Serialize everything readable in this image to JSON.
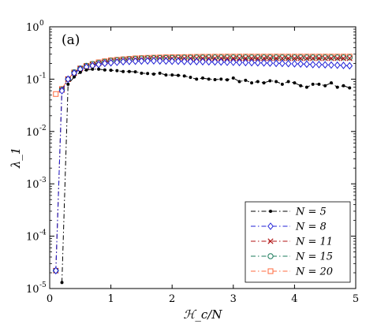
{
  "chart_data": {
    "type": "line",
    "panel_label": "(a)",
    "xlabel": "ℋ_c/N",
    "ylabel": "λ_1",
    "xlim": [
      0,
      5
    ],
    "ylim": [
      1e-05,
      1
    ],
    "yscale": "log",
    "x_ticks": [
      "0",
      "1",
      "2",
      "3",
      "4",
      "5"
    ],
    "y_ticks": [
      {
        "base": "10",
        "exp": "-5"
      },
      {
        "base": "10",
        "exp": "-4"
      },
      {
        "base": "10",
        "exp": "-3"
      },
      {
        "base": "10",
        "exp": "-2"
      },
      {
        "base": "10",
        "exp": "-1"
      },
      {
        "base": "10",
        "exp": "0"
      }
    ],
    "grid": false,
    "legend_position": "lower-right",
    "series": [
      {
        "name": "N = 5",
        "color": "#000000",
        "marker": "dot",
        "x": [
          0.2,
          0.3,
          0.4,
          0.5,
          0.6,
          0.7,
          0.8,
          0.9,
          1.0,
          1.1,
          1.2,
          1.3,
          1.4,
          1.5,
          1.6,
          1.7,
          1.8,
          1.9,
          2.0,
          2.1,
          2.2,
          2.3,
          2.4,
          2.5,
          2.6,
          2.7,
          2.8,
          2.9,
          3.0,
          3.1,
          3.2,
          3.3,
          3.4,
          3.5,
          3.6,
          3.7,
          3.8,
          3.9,
          4.0,
          4.1,
          4.2,
          4.3,
          4.4,
          4.5,
          4.6,
          4.7,
          4.8,
          4.9
        ],
        "y": [
          1.3e-05,
          0.08,
          0.11,
          0.135,
          0.15,
          0.155,
          0.155,
          0.15,
          0.148,
          0.145,
          0.14,
          0.14,
          0.138,
          0.13,
          0.128,
          0.125,
          0.13,
          0.12,
          0.12,
          0.118,
          0.115,
          0.108,
          0.1,
          0.105,
          0.1,
          0.098,
          0.1,
          0.097,
          0.105,
          0.09,
          0.095,
          0.085,
          0.09,
          0.085,
          0.093,
          0.09,
          0.08,
          0.09,
          0.085,
          0.075,
          0.07,
          0.08,
          0.08,
          0.075,
          0.085,
          0.07,
          0.075,
          0.068
        ]
      },
      {
        "name": "N = 8",
        "color": "#1f1fd6",
        "marker": "diamond",
        "x": [
          0.1,
          0.2,
          0.3,
          0.4,
          0.5,
          0.6,
          0.7,
          0.8,
          0.9,
          1.0,
          1.1,
          1.2,
          1.3,
          1.4,
          1.5,
          1.6,
          1.7,
          1.8,
          1.9,
          2.0,
          2.1,
          2.2,
          2.3,
          2.4,
          2.5,
          2.6,
          2.7,
          2.8,
          2.9,
          3.0,
          3.1,
          3.2,
          3.3,
          3.4,
          3.5,
          3.6,
          3.7,
          3.8,
          3.9,
          4.0,
          4.1,
          4.2,
          4.3,
          4.4,
          4.5,
          4.6,
          4.7,
          4.8,
          4.9
        ],
        "y": [
          2.2e-05,
          0.06,
          0.1,
          0.13,
          0.155,
          0.17,
          0.18,
          0.19,
          0.2,
          0.205,
          0.21,
          0.215,
          0.218,
          0.22,
          0.222,
          0.223,
          0.224,
          0.223,
          0.222,
          0.22,
          0.22,
          0.218,
          0.217,
          0.216,
          0.215,
          0.214,
          0.213,
          0.212,
          0.21,
          0.21,
          0.208,
          0.207,
          0.206,
          0.205,
          0.204,
          0.202,
          0.2,
          0.2,
          0.198,
          0.196,
          0.195,
          0.193,
          0.19,
          0.19,
          0.188,
          0.186,
          0.185,
          0.183,
          0.18
        ]
      },
      {
        "name": "N = 11",
        "color": "#b01212",
        "marker": "x",
        "x": [
          0.1,
          0.2,
          0.3,
          0.4,
          0.5,
          0.6,
          0.7,
          0.8,
          0.9,
          1.0,
          1.1,
          1.2,
          1.3,
          1.4,
          1.5,
          1.6,
          1.7,
          1.8,
          1.9,
          2.0,
          2.1,
          2.2,
          2.3,
          2.4,
          2.5,
          2.6,
          2.7,
          2.8,
          2.9,
          3.0,
          3.1,
          3.2,
          3.3,
          3.4,
          3.5,
          3.6,
          3.7,
          3.8,
          3.9,
          4.0,
          4.1,
          4.2,
          4.3,
          4.4,
          4.5,
          4.6,
          4.7,
          4.8,
          4.9
        ],
        "y": [
          2.2e-05,
          0.062,
          0.1,
          0.13,
          0.16,
          0.175,
          0.19,
          0.2,
          0.21,
          0.22,
          0.225,
          0.23,
          0.235,
          0.24,
          0.242,
          0.245,
          0.247,
          0.248,
          0.25,
          0.25,
          0.25,
          0.25,
          0.25,
          0.25,
          0.25,
          0.25,
          0.25,
          0.25,
          0.25,
          0.25,
          0.25,
          0.25,
          0.25,
          0.25,
          0.25,
          0.25,
          0.25,
          0.25,
          0.25,
          0.25,
          0.25,
          0.25,
          0.25,
          0.25,
          0.25,
          0.25,
          0.25,
          0.25,
          0.25
        ]
      },
      {
        "name": "N = 15",
        "color": "#1a7a5a",
        "marker": "circle",
        "x": [
          0.1,
          0.2,
          0.3,
          0.4,
          0.5,
          0.6,
          0.7,
          0.8,
          0.9,
          1.0,
          1.1,
          1.2,
          1.3,
          1.4,
          1.5,
          1.6,
          1.7,
          1.8,
          1.9,
          2.0,
          2.1,
          2.2,
          2.3,
          2.4,
          2.5,
          2.6,
          2.7,
          2.8,
          2.9,
          3.0,
          3.1,
          3.2,
          3.3,
          3.4,
          3.5,
          3.6,
          3.7,
          3.8,
          3.9,
          4.0,
          4.1,
          4.2,
          4.3,
          4.4,
          4.5,
          4.6,
          4.7,
          4.8,
          4.9
        ],
        "y": [
          2.2e-05,
          0.063,
          0.1,
          0.135,
          0.16,
          0.18,
          0.195,
          0.205,
          0.215,
          0.225,
          0.23,
          0.236,
          0.24,
          0.245,
          0.248,
          0.25,
          0.252,
          0.254,
          0.255,
          0.256,
          0.257,
          0.258,
          0.258,
          0.259,
          0.259,
          0.26,
          0.26,
          0.26,
          0.26,
          0.26,
          0.26,
          0.26,
          0.26,
          0.26,
          0.26,
          0.26,
          0.26,
          0.26,
          0.26,
          0.26,
          0.26,
          0.26,
          0.26,
          0.26,
          0.26,
          0.26,
          0.26,
          0.26,
          0.26
        ]
      },
      {
        "name": "N = 20",
        "color": "#ff6a3d",
        "marker": "square",
        "x": [
          0.1,
          0.2,
          0.3,
          0.4,
          0.5,
          0.6,
          0.7,
          0.8,
          0.9,
          1.0,
          1.1,
          1.2,
          1.3,
          1.4,
          1.5,
          1.6,
          1.7,
          1.8,
          1.9,
          2.0,
          2.1,
          2.2,
          2.3,
          2.4,
          2.5,
          2.6,
          2.7,
          2.8,
          2.9,
          3.0,
          3.1,
          3.2,
          3.3,
          3.4,
          3.5,
          3.6,
          3.7,
          3.8,
          3.9,
          4.0,
          4.1,
          4.2,
          4.3,
          4.4,
          4.5,
          4.6,
          4.7,
          4.8,
          4.9
        ],
        "y": [
          0.052,
          0.065,
          0.1,
          0.135,
          0.16,
          0.18,
          0.195,
          0.21,
          0.22,
          0.23,
          0.235,
          0.24,
          0.245,
          0.25,
          0.253,
          0.256,
          0.258,
          0.26,
          0.262,
          0.263,
          0.264,
          0.265,
          0.266,
          0.267,
          0.268,
          0.268,
          0.269,
          0.269,
          0.27,
          0.27,
          0.27,
          0.27,
          0.27,
          0.27,
          0.27,
          0.27,
          0.27,
          0.27,
          0.27,
          0.27,
          0.27,
          0.27,
          0.27,
          0.27,
          0.27,
          0.27,
          0.27,
          0.27,
          0.27
        ]
      }
    ]
  }
}
